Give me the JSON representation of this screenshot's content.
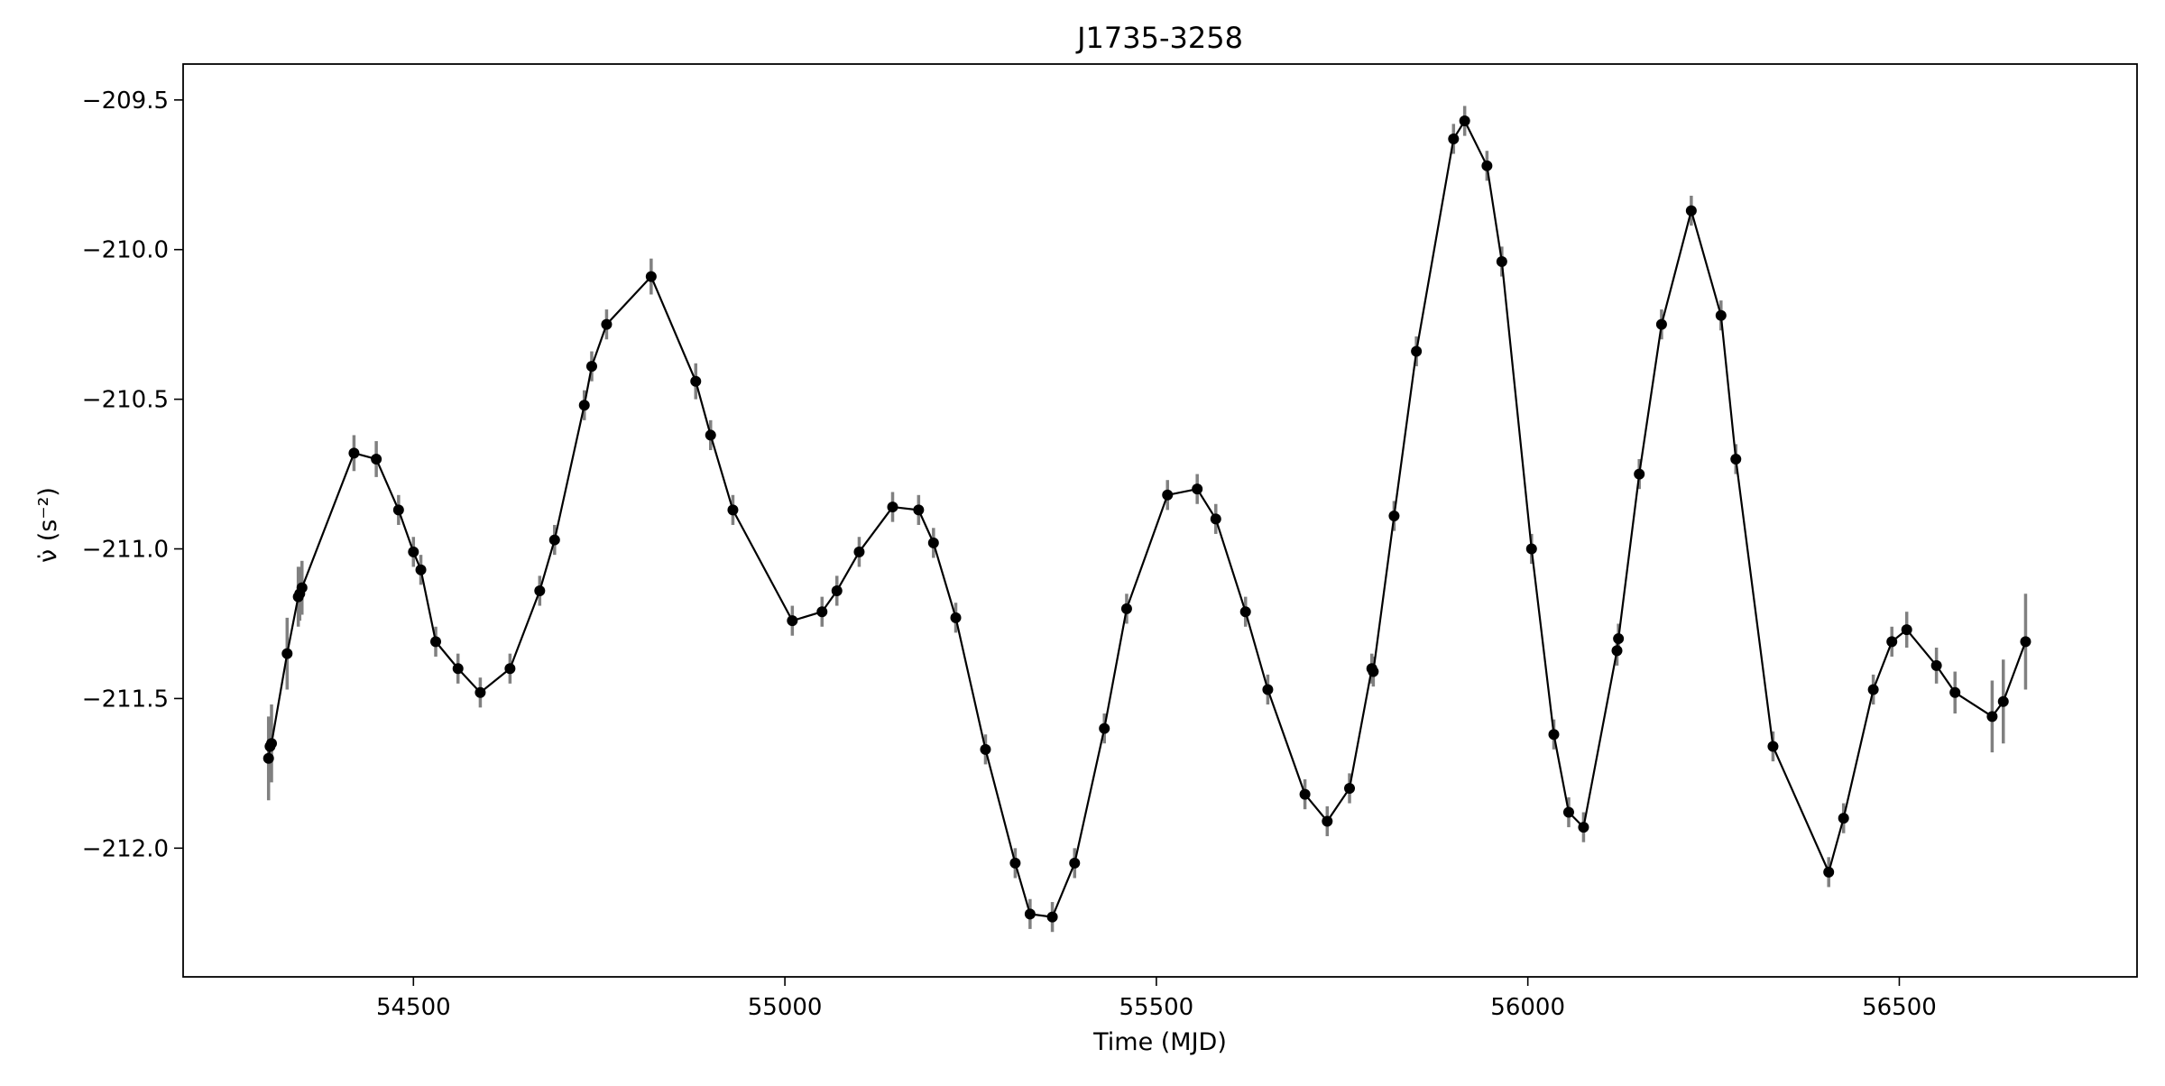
{
  "chart_data": {
    "type": "line",
    "title": "J1735-3258",
    "xlabel": "Time (MJD)",
    "ylabel": "ν̇ (s⁻²)",
    "xlim": [
      54190,
      56820
    ],
    "ylim": [
      -212.43,
      -209.38
    ],
    "xticks": [
      54500,
      55000,
      55500,
      56000,
      56500
    ],
    "xtick_labels": [
      "54500",
      "55000",
      "55500",
      "56000",
      "56500"
    ],
    "yticks": [
      -209.5,
      -210.0,
      -210.5,
      -211.0,
      -211.5,
      -212.0
    ],
    "ytick_labels": [
      "−209.5",
      "−210.0",
      "−210.5",
      "−211.0",
      "−211.5",
      "−212.0"
    ],
    "grid": false,
    "colors": {
      "line": "#000000",
      "marker": "#000000",
      "errorbar": "#808080"
    },
    "series": [
      {
        "x": [
          54305,
          54307,
          54309,
          54330,
          54345,
          54347,
          54350,
          54420,
          54450,
          54480,
          54500,
          54510,
          54530,
          54560,
          54590,
          54630,
          54670,
          54690,
          54730,
          54740,
          54760,
          54820,
          54880,
          54900,
          54930,
          55010,
          55050,
          55070,
          55100,
          55145,
          55180,
          55200,
          55230,
          55270,
          55310,
          55330,
          55360,
          55390,
          55430,
          55460,
          55515,
          55555,
          55580,
          55620,
          55650,
          55700,
          55730,
          55760,
          55790,
          55792,
          55820,
          55850,
          55900,
          55915,
          55945,
          55965,
          56005,
          56035,
          56055,
          56075,
          56120,
          56122,
          56150,
          56180,
          56220,
          56260,
          56280,
          56330,
          56405,
          56425,
          56465,
          56490,
          56510,
          56550,
          56575,
          56625,
          56640,
          56670
        ],
        "y": [
          -211.7,
          -211.66,
          -211.65,
          -211.35,
          -211.16,
          -211.15,
          -211.13,
          -210.68,
          -210.7,
          -210.87,
          -211.01,
          -211.07,
          -211.31,
          -211.4,
          -211.48,
          -211.4,
          -211.14,
          -210.97,
          -210.52,
          -210.39,
          -210.25,
          -210.09,
          -210.44,
          -210.62,
          -210.87,
          -211.24,
          -211.21,
          -211.14,
          -211.01,
          -210.86,
          -210.87,
          -210.98,
          -211.23,
          -211.67,
          -212.05,
          -212.22,
          -212.23,
          -212.05,
          -211.6,
          -211.2,
          -210.82,
          -210.8,
          -210.9,
          -211.21,
          -211.47,
          -211.82,
          -211.91,
          -211.8,
          -211.4,
          -211.41,
          -210.89,
          -210.34,
          -209.63,
          -209.57,
          -209.72,
          -210.04,
          -211.0,
          -211.62,
          -211.88,
          -211.93,
          -211.34,
          -211.3,
          -210.75,
          -210.25,
          -209.87,
          -210.22,
          -210.7,
          -211.66,
          -212.08,
          -211.9,
          -211.47,
          -211.31,
          -211.27,
          -211.39,
          -211.48,
          -211.56,
          -211.51,
          -211.31
        ],
        "yerr": [
          0.14,
          0.09,
          0.13,
          0.12,
          0.1,
          0.09,
          0.09,
          0.06,
          0.06,
          0.05,
          0.05,
          0.05,
          0.05,
          0.05,
          0.05,
          0.05,
          0.05,
          0.05,
          0.05,
          0.05,
          0.05,
          0.06,
          0.06,
          0.05,
          0.05,
          0.05,
          0.05,
          0.05,
          0.05,
          0.05,
          0.05,
          0.05,
          0.05,
          0.05,
          0.05,
          0.05,
          0.05,
          0.05,
          0.05,
          0.05,
          0.05,
          0.05,
          0.05,
          0.05,
          0.05,
          0.05,
          0.05,
          0.05,
          0.05,
          0.05,
          0.05,
          0.05,
          0.05,
          0.05,
          0.05,
          0.05,
          0.05,
          0.05,
          0.05,
          0.05,
          0.05,
          0.05,
          0.05,
          0.05,
          0.05,
          0.05,
          0.05,
          0.05,
          0.05,
          0.05,
          0.05,
          0.05,
          0.06,
          0.06,
          0.07,
          0.12,
          0.14,
          0.16
        ]
      }
    ]
  }
}
